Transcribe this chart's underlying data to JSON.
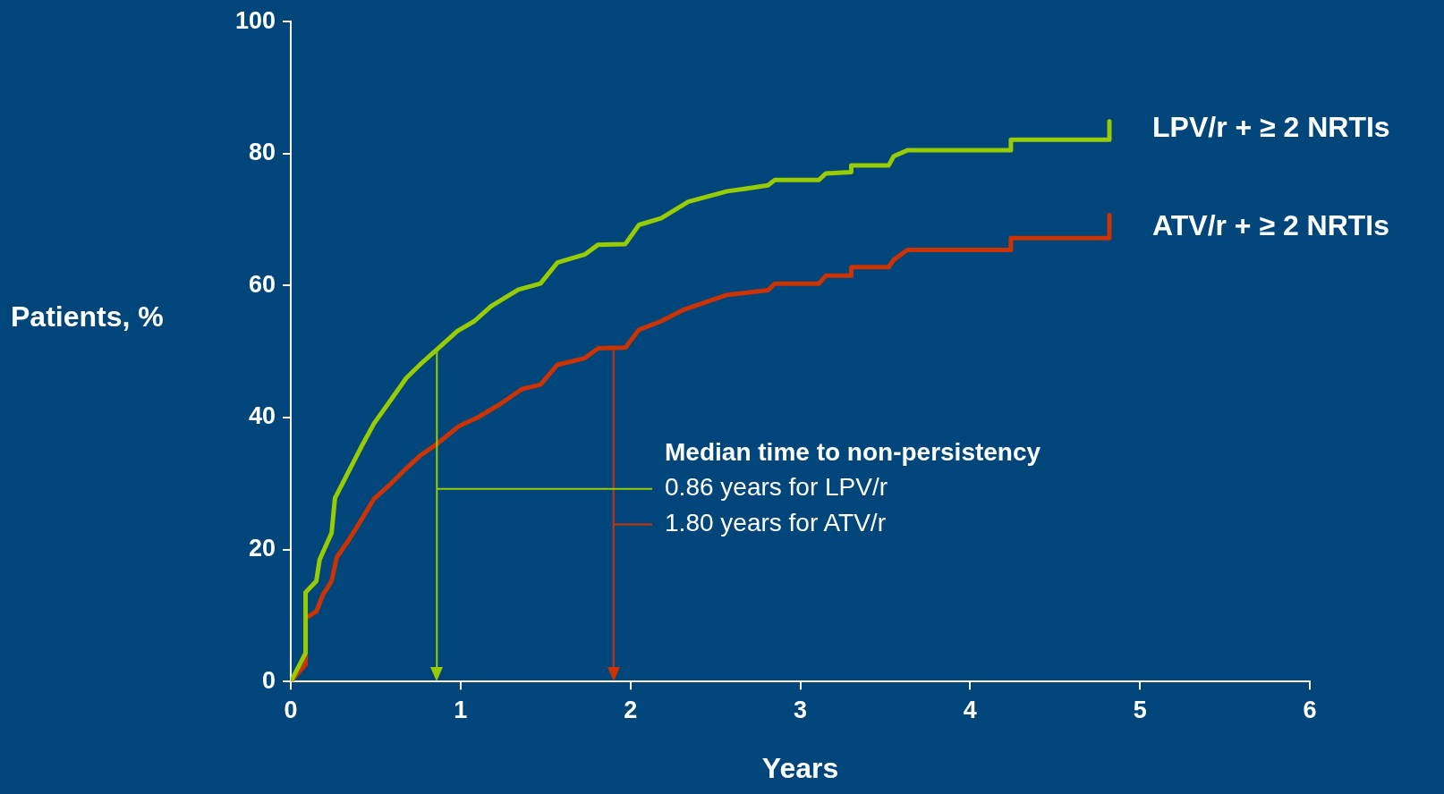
{
  "chart_data": {
    "type": "line",
    "xlabel": "Years",
    "ylabel": "Patients, %",
    "xlim": [
      0,
      6
    ],
    "ylim": [
      0,
      100
    ],
    "xticks": [
      0,
      1,
      2,
      3,
      4,
      5,
      6
    ],
    "yticks": [
      0,
      20,
      40,
      60,
      80,
      100
    ],
    "series": [
      {
        "name": "LPV/r + ≥ 2 NRTIs",
        "color": "#99cc00",
        "x": [
          0,
          0.087,
          0.087,
          0.15,
          0.17,
          0.24,
          0.26,
          0.34,
          0.42,
          0.49,
          0.59,
          0.68,
          0.76,
          0.86,
          0.98,
          1.08,
          1.18,
          1.34,
          1.47,
          1.57,
          1.73,
          1.81,
          1.97,
          2.05,
          2.18,
          2.34,
          2.57,
          2.68,
          2.81,
          2.85,
          3.11,
          3.15,
          3.3,
          3.3,
          3.52,
          3.55,
          3.63,
          4.24,
          4.24,
          4.82,
          4.82
        ],
        "values": [
          0,
          4.3,
          13.5,
          15.2,
          18.5,
          22.5,
          27.8,
          31.8,
          35.8,
          39.1,
          42.7,
          46,
          48,
          50.3,
          53.1,
          54.6,
          56.9,
          59.4,
          60.3,
          63.5,
          64.7,
          66.2,
          66.3,
          69.2,
          70.2,
          72.7,
          74.3,
          74.7,
          75.2,
          76,
          76,
          77,
          77.2,
          78.2,
          78.2,
          79.6,
          80.5,
          80.5,
          82.1,
          82.1,
          84.9
        ]
      },
      {
        "name": "ATV/r + ≥ 2 NRTIs",
        "color": "#cc3300",
        "x": [
          0,
          0.087,
          0.087,
          0.15,
          0.19,
          0.24,
          0.27,
          0.34,
          0.42,
          0.49,
          0.59,
          0.68,
          0.76,
          0.86,
          0.99,
          1.1,
          1.23,
          1.36,
          1.47,
          1.57,
          1.73,
          1.81,
          1.97,
          2.05,
          2.18,
          2.31,
          2.57,
          2.68,
          2.81,
          2.85,
          3.11,
          3.15,
          3.3,
          3.3,
          3.52,
          3.55,
          3.63,
          4.24,
          4.24,
          4.82,
          4.82
        ],
        "values": [
          0,
          2.6,
          9.6,
          10.6,
          13.2,
          15.2,
          18.8,
          21.4,
          24.7,
          27.7,
          30,
          32.3,
          34.2,
          36,
          38.7,
          40,
          42,
          44.3,
          45,
          48,
          49,
          50.5,
          50.6,
          53.3,
          54.6,
          56.3,
          58.6,
          58.9,
          59.3,
          60.3,
          60.3,
          61.5,
          61.5,
          62.8,
          62.8,
          63.9,
          65.4,
          65.4,
          67.2,
          67.2,
          70.7
        ]
      }
    ],
    "annotations": [
      "Median time to non-persistency",
      {
        "text": "0.86 years for LPV/r",
        "x": 0.86,
        "y": 29.2
      },
      {
        "text": "1.80 years for ATV/r",
        "x": 1.9,
        "y": 23.8
      }
    ],
    "ref_lines": [
      {
        "axis": "x",
        "value": 0.86,
        "color": "#99cc00"
      },
      {
        "axis": "x",
        "value": 1.9,
        "color": "#cc3300"
      }
    ]
  }
}
